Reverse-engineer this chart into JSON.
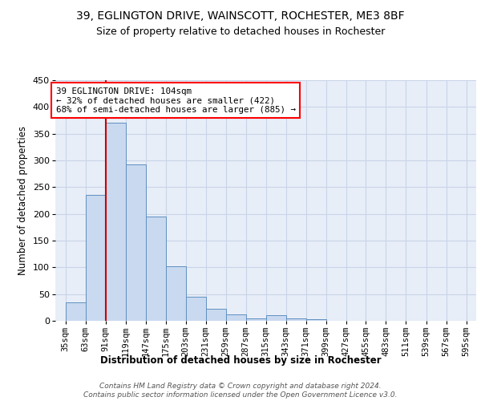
{
  "title1": "39, EGLINGTON DRIVE, WAINSCOTT, ROCHESTER, ME3 8BF",
  "title2": "Size of property relative to detached houses in Rochester",
  "xlabel": "Distribution of detached houses by size in Rochester",
  "ylabel": "Number of detached properties",
  "bin_edges": [
    35,
    63,
    91,
    119,
    147,
    175,
    203,
    231,
    259,
    287,
    315,
    343,
    371,
    399,
    427,
    455,
    483,
    511,
    539,
    567,
    595
  ],
  "bar_heights": [
    35,
    235,
    370,
    293,
    195,
    102,
    45,
    22,
    12,
    5,
    10,
    5,
    3,
    0,
    0,
    0,
    0,
    0,
    0,
    0
  ],
  "tick_labels": [
    "35sqm",
    "63sqm",
    "91sqm",
    "119sqm",
    "147sqm",
    "175sqm",
    "203sqm",
    "231sqm",
    "259sqm",
    "287sqm",
    "315sqm",
    "343sqm",
    "371sqm",
    "399sqm",
    "427sqm",
    "455sqm",
    "483sqm",
    "511sqm",
    "539sqm",
    "567sqm",
    "595sqm"
  ],
  "bar_color": "#c9d9ef",
  "bar_edge_color": "#6090c0",
  "annotation_text": "39 EGLINGTON DRIVE: 104sqm\n← 32% of detached houses are smaller (422)\n68% of semi-detached houses are larger (885) →",
  "red_line_color": "#cc0000",
  "ylim_max": 450,
  "yticks": [
    0,
    50,
    100,
    150,
    200,
    250,
    300,
    350,
    400,
    450
  ],
  "grid_color": "#c8d4e8",
  "background_color": "#e8eef8",
  "footer_text": "Contains HM Land Registry data © Crown copyright and database right 2024.\nContains public sector information licensed under the Open Government Licence v3.0."
}
